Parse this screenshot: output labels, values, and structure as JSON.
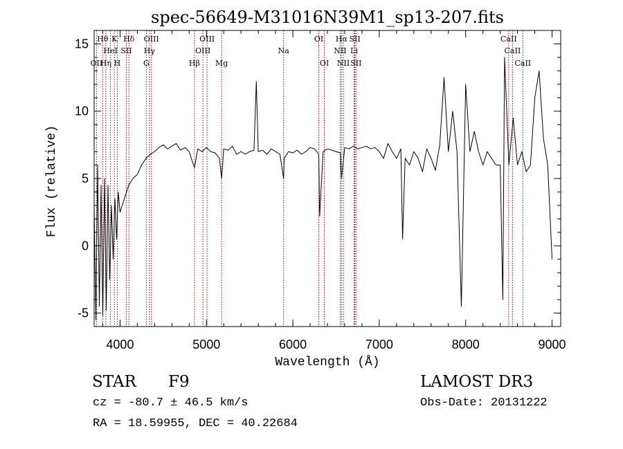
{
  "chart_data": {
    "type": "line",
    "title": "spec-56649-M31016N39M1_sp13-207.fits",
    "xlabel": "Wavelength (Å)",
    "ylabel": "Flux (relative)",
    "xlim": [
      3700,
      9100
    ],
    "ylim": [
      -6.0,
      16.0
    ],
    "x_ticks": [
      4000,
      5000,
      6000,
      7000,
      8000,
      9000
    ],
    "x_tick_labels": [
      "4000",
      "5000",
      "6000",
      "7000",
      "8000",
      "9000"
    ],
    "y_ticks": [
      -5,
      0,
      5,
      10,
      15
    ],
    "y_tick_labels": [
      "-5",
      "0",
      "5",
      "10",
      "15"
    ],
    "grid": false,
    "series": [
      {
        "name": "spectrum",
        "x": [
          3700,
          3720,
          3740,
          3760,
          3780,
          3800,
          3820,
          3840,
          3860,
          3880,
          3900,
          3920,
          3940,
          3960,
          3980,
          4000,
          4050,
          4100,
          4150,
          4200,
          4250,
          4300,
          4350,
          4400,
          4450,
          4500,
          4550,
          4600,
          4650,
          4700,
          4750,
          4800,
          4850,
          4861,
          4900,
          4950,
          5000,
          5050,
          5100,
          5150,
          5175,
          5200,
          5250,
          5300,
          5350,
          5400,
          5450,
          5500,
          5550,
          5577,
          5600,
          5650,
          5700,
          5750,
          5800,
          5850,
          5893,
          5900,
          5950,
          6000,
          6050,
          6100,
          6150,
          6200,
          6250,
          6300,
          6310,
          6350,
          6400,
          6450,
          6500,
          6550,
          6563,
          6600,
          6650,
          6700,
          6750,
          6800,
          6850,
          6900,
          6950,
          7000,
          7050,
          7100,
          7150,
          7200,
          7250,
          7270,
          7300,
          7350,
          7400,
          7450,
          7500,
          7550,
          7600,
          7650,
          7700,
          7750,
          7800,
          7850,
          7900,
          7950,
          8000,
          8050,
          8100,
          8150,
          8200,
          8250,
          8300,
          8350,
          8400,
          8430,
          8450,
          8500,
          8550,
          8600,
          8650,
          8700,
          8750,
          8800,
          8850,
          8900,
          8950,
          9000
        ],
        "values": [
          3.0,
          -5.5,
          6.0,
          -4.5,
          4.5,
          -5.2,
          5.0,
          -4.8,
          4.5,
          -2.5,
          3.0,
          -1.0,
          3.5,
          0.5,
          4.0,
          2.5,
          3.5,
          4.5,
          5.0,
          5.3,
          6.0,
          6.5,
          6.8,
          7.0,
          7.3,
          7.5,
          7.2,
          7.4,
          7.6,
          7.1,
          7.3,
          7.0,
          6.0,
          5.8,
          7.2,
          7.0,
          7.3,
          7.0,
          6.9,
          6.5,
          5.0,
          7.2,
          7.1,
          7.4,
          6.8,
          7.0,
          6.8,
          7.0,
          7.1,
          12.2,
          7.0,
          7.1,
          6.8,
          7.2,
          7.0,
          6.8,
          5.0,
          6.5,
          7.0,
          6.9,
          7.1,
          6.8,
          7.0,
          7.3,
          7.2,
          6.8,
          2.2,
          7.0,
          7.2,
          7.1,
          7.0,
          6.9,
          5.0,
          7.3,
          7.2,
          7.4,
          7.2,
          7.3,
          7.4,
          7.2,
          7.3,
          7.0,
          6.5,
          7.6,
          7.0,
          6.5,
          7.2,
          0.5,
          6.5,
          6.0,
          7.0,
          6.5,
          5.5,
          7.2,
          6.5,
          5.6,
          7.5,
          12.5,
          7.0,
          10.0,
          7.0,
          -4.5,
          12.0,
          7.0,
          8.5,
          7.0,
          6.0,
          7.0,
          6.5,
          6.0,
          6.0,
          -4.0,
          14.0,
          6.0,
          9.5,
          6.0,
          7.0,
          5.5,
          6.0,
          11.0,
          13.0,
          8.0,
          6.0,
          -1.0
        ]
      }
    ],
    "lines": [
      {
        "label": "OII",
        "wavelength": 3727,
        "row": 2
      },
      {
        "label": "Hθ",
        "wavelength": 3798,
        "row": 0
      },
      {
        "label": "Hη",
        "wavelength": 3835,
        "row": 2
      },
      {
        "label": "HeI",
        "wavelength": 3889,
        "row": 1
      },
      {
        "label": "K",
        "wavelength": 3934,
        "row": 0
      },
      {
        "label": "H",
        "wavelength": 3968,
        "row": 2
      },
      {
        "label": "SII",
        "wavelength": 4072,
        "row": 1
      },
      {
        "label": "Hδ",
        "wavelength": 4102,
        "row": 0
      },
      {
        "label": "G",
        "wavelength": 4304,
        "row": 2
      },
      {
        "label": "Hγ",
        "wavelength": 4340,
        "row": 1
      },
      {
        "label": "OIII",
        "wavelength": 4363,
        "row": 0
      },
      {
        "label": "Hβ",
        "wavelength": 4861,
        "row": 2
      },
      {
        "label": "OIII",
        "wavelength": 4959,
        "row": 1
      },
      {
        "label": "OIII",
        "wavelength": 5007,
        "row": 0
      },
      {
        "label": "Mg",
        "wavelength": 5175,
        "row": 2
      },
      {
        "label": "Na",
        "wavelength": 5893,
        "row": 1
      },
      {
        "label": "OI",
        "wavelength": 6300,
        "row": 0
      },
      {
        "label": "OI",
        "wavelength": 6364,
        "row": 2
      },
      {
        "label": "NII",
        "wavelength": 6548,
        "row": 1
      },
      {
        "label": "Hα",
        "wavelength": 6563,
        "row": 0
      },
      {
        "label": "NII",
        "wavelength": 6584,
        "row": 2
      },
      {
        "label": "SII",
        "wavelength": 6717,
        "row": 0
      },
      {
        "label": "Li",
        "wavelength": 6708,
        "row": 1
      },
      {
        "label": "SII",
        "wavelength": 6731,
        "row": 2
      },
      {
        "label": "CaII",
        "wavelength": 8498,
        "row": 0
      },
      {
        "label": "CaII",
        "wavelength": 8542,
        "row": 1
      },
      {
        "label": "CaII",
        "wavelength": 8662,
        "row": 2
      }
    ]
  },
  "info": {
    "object_class": "STAR",
    "subclass": "F9",
    "survey": "LAMOST DR3",
    "cz": "cz = -80.7 ± 46.5 km/s",
    "obs_date": "Obs-Date: 20131222",
    "radec": "RA =  18.59955, DEC =  40.22684"
  },
  "colors": {
    "spectrum": "#000000",
    "line_markers": "#8b0000",
    "axes": "#000000"
  }
}
